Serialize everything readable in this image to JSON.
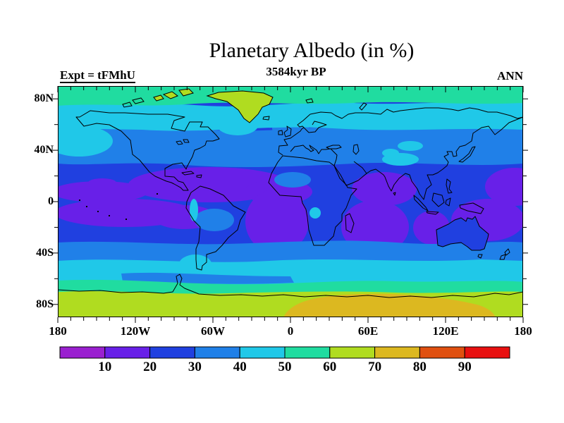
{
  "header": {
    "title": "Planetary Albedo (in %)",
    "subtitle": "3584kyr BP",
    "experiment": "Expt = tFMhU",
    "season": "ANN"
  },
  "chart_data": {
    "type": "heatmap",
    "title": "Planetary Albedo (in %)",
    "subtitle": "3584kyr BP",
    "experiment_label": "Expt = tFMhU",
    "season_label": "ANN",
    "units": "percent albedo",
    "projection": "equirectangular world map, 90N-90S by 180W-180E, coastlines overlaid",
    "x_axis": {
      "tick_labels": [
        "180",
        "120W",
        "60W",
        "0",
        "60E",
        "120E",
        "180"
      ],
      "tick_lons": [
        -180,
        -120,
        -60,
        0,
        60,
        120,
        180
      ],
      "minor_tick_step_deg": 10,
      "major_tick_step_deg": 60
    },
    "y_axis": {
      "tick_labels": [
        "80N",
        "40N",
        "0",
        "40S",
        "80S"
      ],
      "tick_lats": [
        80,
        40,
        0,
        -40,
        -80
      ],
      "minor_tick_step_deg": 20,
      "major_tick_step_deg": 40
    },
    "colorbar": {
      "boundary_labels": [
        "10",
        "20",
        "30",
        "40",
        "50",
        "60",
        "70",
        "80",
        "90"
      ],
      "band_ranges": [
        "<10",
        "10-20",
        "20-30",
        "30-40",
        "40-50",
        "50-60",
        "60-70",
        "70-80",
        "80-90",
        ">90"
      ],
      "band_colors": [
        "#9a20d0",
        "#6820e8",
        "#2040e0",
        "#2080e8",
        "#20c8e8",
        "#20dca0",
        "#b0dc20",
        "#dcb820",
        "#e05010",
        "#e81010"
      ]
    },
    "field_summary": [
      {
        "region": "Arctic Ocean 75-90N",
        "albedo_pct": "50-60"
      },
      {
        "region": "Greenland and Canadian Arctic islands",
        "albedo_pct": "60-70"
      },
      {
        "region": "Northern mid-latitude band ~50-72N",
        "albedo_pct": "40-50"
      },
      {
        "region": "Northern subtropical band ~30-50N",
        "albedo_pct": "30-40"
      },
      {
        "region": "Tropical oceans general background",
        "albedo_pct": "20-30"
      },
      {
        "region": "Tropical E Pacific, Caribbean/tropical Atlantic, S Atlantic off Africa, Arabian Sea/India, S Indian Ocean, around Australia, W Pacific near date line",
        "albedo_pct": "10-20"
      },
      {
        "region": "Tibetan Plateau and scattered land patches",
        "albedo_pct": "40-50"
      },
      {
        "region": "Southern mid-latitude band ~25-45S",
        "albedo_pct": "30-40"
      },
      {
        "region": "Southern Ocean ~45-62S",
        "albedo_pct": "40-50"
      },
      {
        "region": "Antarctic coastal waters ~62-68S",
        "albedo_pct": "50-60"
      },
      {
        "region": "Antarctica ice sheet (most of continent)",
        "albedo_pct": "60-70"
      },
      {
        "region": "East Antarctica interior plateau (0E-150E)",
        "albedo_pct": "70-80"
      }
    ]
  }
}
